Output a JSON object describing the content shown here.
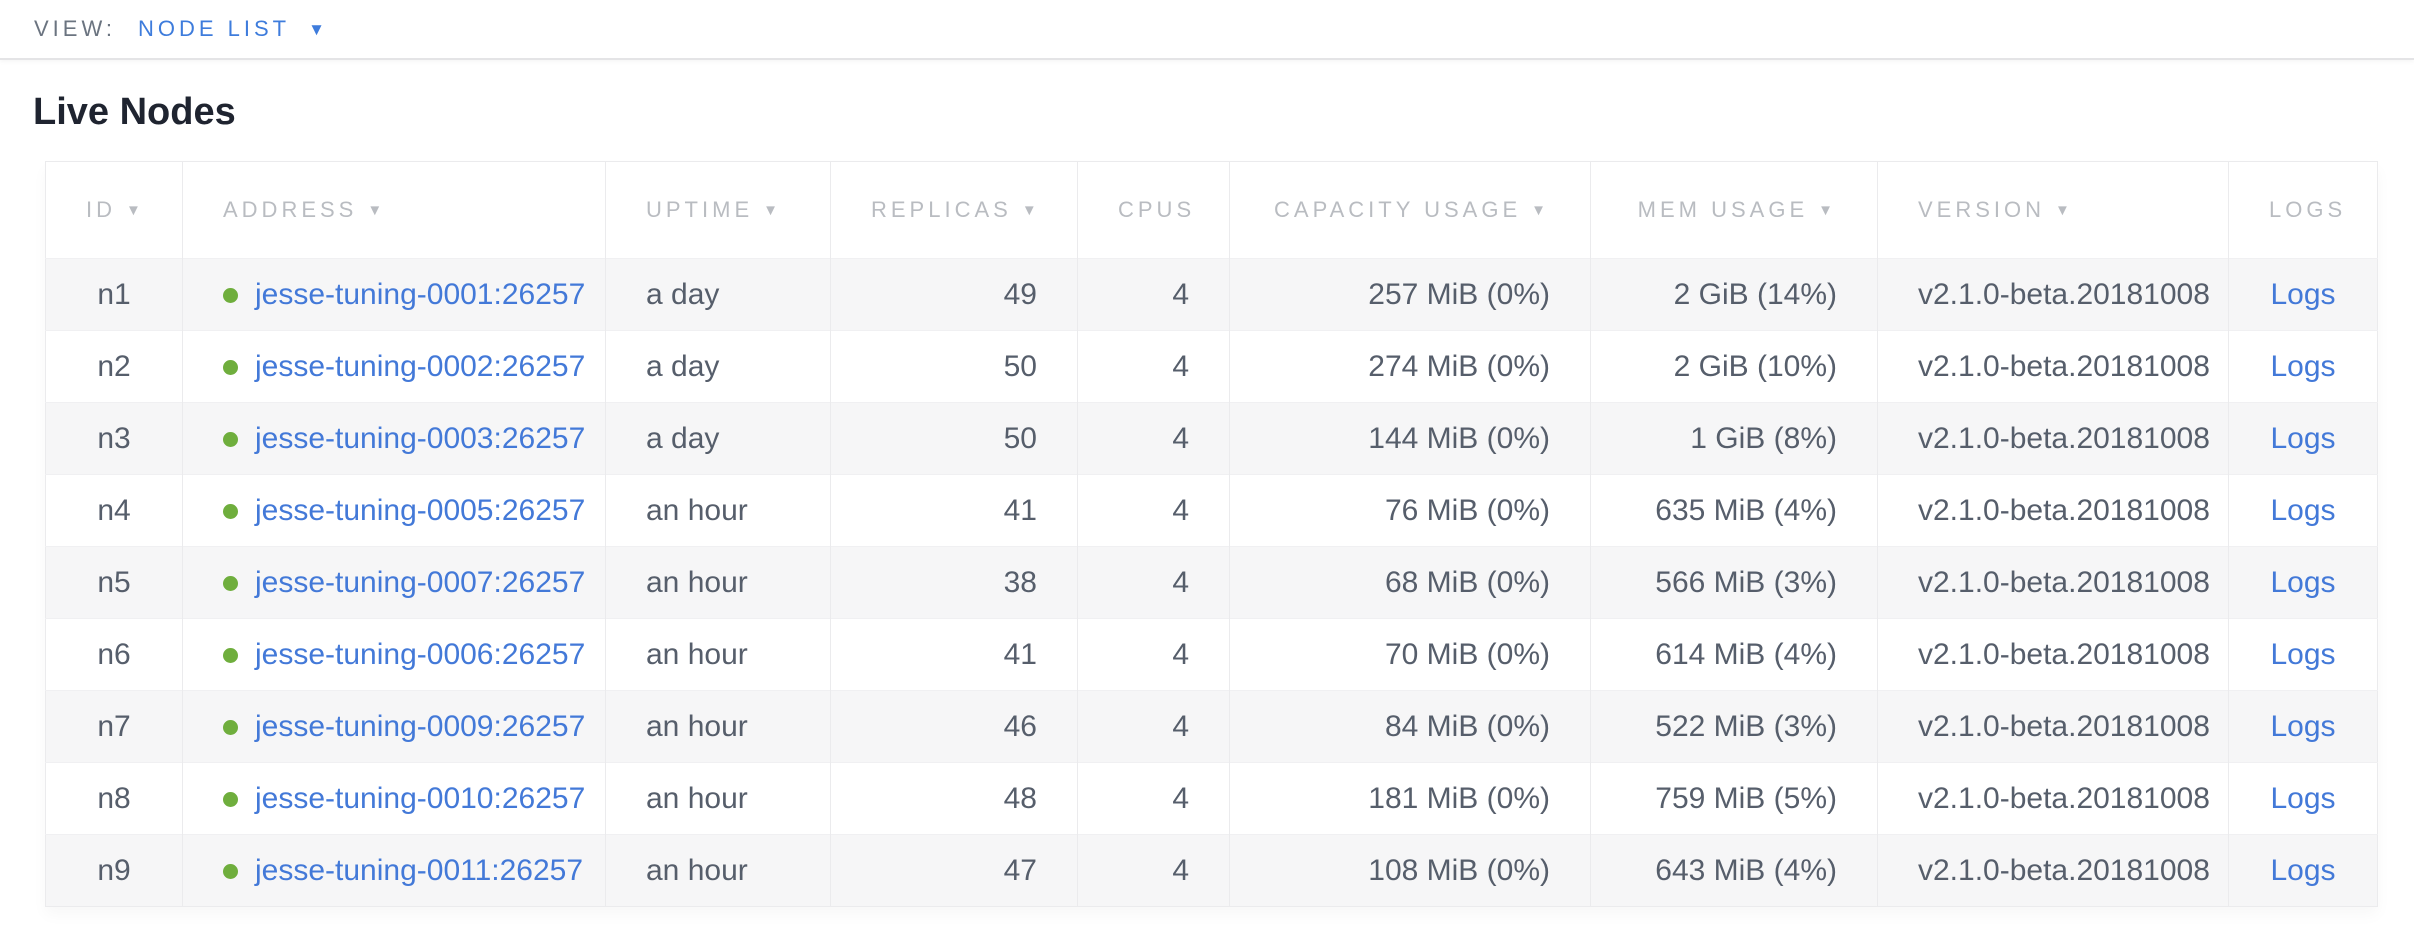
{
  "view_bar": {
    "label": "VIEW:",
    "selected": "NODE LIST"
  },
  "page": {
    "title": "Live Nodes"
  },
  "icons": {
    "sort_desc": "▼",
    "dropdown": "▼"
  },
  "colors": {
    "link_blue": "#4379d8",
    "live_dot_green": "#6fae3d",
    "header_gray": "#b9bcc1",
    "body_slate": "#565e6b",
    "stripe": "#f6f6f7"
  },
  "table": {
    "columns": [
      {
        "key": "id",
        "label": "ID",
        "sortable": true,
        "align": "center"
      },
      {
        "key": "address",
        "label": "ADDRESS",
        "sortable": true,
        "align": "left"
      },
      {
        "key": "uptime",
        "label": "UPTIME",
        "sortable": true,
        "align": "left"
      },
      {
        "key": "replicas",
        "label": "REPLICAS",
        "sortable": true,
        "align": "right"
      },
      {
        "key": "cpus",
        "label": "CPUS",
        "sortable": false,
        "align": "right"
      },
      {
        "key": "capacity",
        "label": "CAPACITY USAGE",
        "sortable": true,
        "align": "right"
      },
      {
        "key": "mem",
        "label": "MEM USAGE",
        "sortable": true,
        "align": "right"
      },
      {
        "key": "version",
        "label": "VERSION",
        "sortable": true,
        "align": "left"
      },
      {
        "key": "logs",
        "label": "LOGS",
        "sortable": false,
        "align": "center"
      }
    ],
    "rows": [
      {
        "id": "n1",
        "status": "live",
        "address": "jesse-tuning-0001:26257",
        "uptime": "a day",
        "replicas": "49",
        "cpus": "4",
        "capacity": "257 MiB (0%)",
        "mem": "2 GiB (14%)",
        "version": "v2.1.0-beta.20181008",
        "logs": "Logs"
      },
      {
        "id": "n2",
        "status": "live",
        "address": "jesse-tuning-0002:26257",
        "uptime": "a day",
        "replicas": "50",
        "cpus": "4",
        "capacity": "274 MiB (0%)",
        "mem": "2 GiB (10%)",
        "version": "v2.1.0-beta.20181008",
        "logs": "Logs"
      },
      {
        "id": "n3",
        "status": "live",
        "address": "jesse-tuning-0003:26257",
        "uptime": "a day",
        "replicas": "50",
        "cpus": "4",
        "capacity": "144 MiB (0%)",
        "mem": "1 GiB (8%)",
        "version": "v2.1.0-beta.20181008",
        "logs": "Logs"
      },
      {
        "id": "n4",
        "status": "live",
        "address": "jesse-tuning-0005:26257",
        "uptime": "an hour",
        "replicas": "41",
        "cpus": "4",
        "capacity": "76 MiB (0%)",
        "mem": "635 MiB (4%)",
        "version": "v2.1.0-beta.20181008",
        "logs": "Logs"
      },
      {
        "id": "n5",
        "status": "live",
        "address": "jesse-tuning-0007:26257",
        "uptime": "an hour",
        "replicas": "38",
        "cpus": "4",
        "capacity": "68 MiB (0%)",
        "mem": "566 MiB (3%)",
        "version": "v2.1.0-beta.20181008",
        "logs": "Logs"
      },
      {
        "id": "n6",
        "status": "live",
        "address": "jesse-tuning-0006:26257",
        "uptime": "an hour",
        "replicas": "41",
        "cpus": "4",
        "capacity": "70 MiB (0%)",
        "mem": "614 MiB (4%)",
        "version": "v2.1.0-beta.20181008",
        "logs": "Logs"
      },
      {
        "id": "n7",
        "status": "live",
        "address": "jesse-tuning-0009:26257",
        "uptime": "an hour",
        "replicas": "46",
        "cpus": "4",
        "capacity": "84 MiB (0%)",
        "mem": "522 MiB (3%)",
        "version": "v2.1.0-beta.20181008",
        "logs": "Logs"
      },
      {
        "id": "n8",
        "status": "live",
        "address": "jesse-tuning-0010:26257",
        "uptime": "an hour",
        "replicas": "48",
        "cpus": "4",
        "capacity": "181 MiB (0%)",
        "mem": "759 MiB (5%)",
        "version": "v2.1.0-beta.20181008",
        "logs": "Logs"
      },
      {
        "id": "n9",
        "status": "live",
        "address": "jesse-tuning-0011:26257",
        "uptime": "an hour",
        "replicas": "47",
        "cpus": "4",
        "capacity": "108 MiB (0%)",
        "mem": "643 MiB (4%)",
        "version": "v2.1.0-beta.20181008",
        "logs": "Logs"
      }
    ]
  }
}
